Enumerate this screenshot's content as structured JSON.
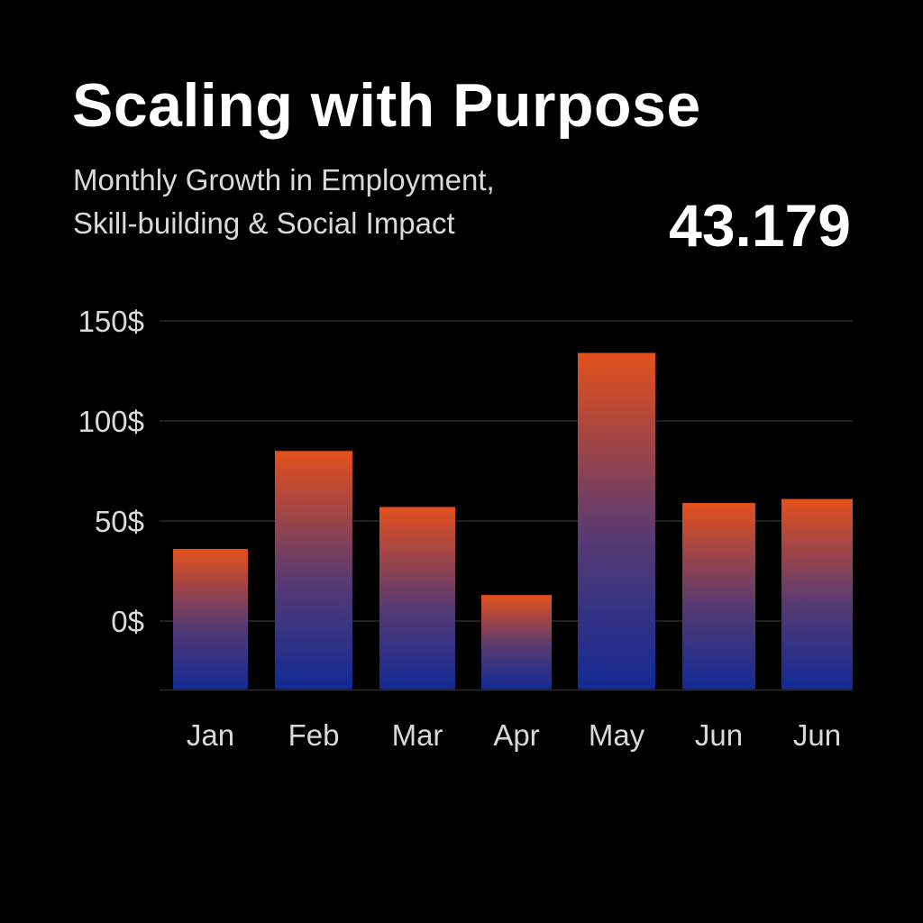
{
  "header": {
    "title": "Scaling with Purpose",
    "subtitle_line1": "Monthly Growth in Employment,",
    "subtitle_line2": "Skill-building & Social Impact",
    "kpi_value": "43.179"
  },
  "colors": {
    "background": "#000000",
    "bar_top": "#e4501c",
    "bar_bottom": "#122a94",
    "gridline": "#2a2a2a",
    "tick_text": "#d9d9d9"
  },
  "chart_data": {
    "type": "bar",
    "title": "Scaling with Purpose",
    "subtitle": "Monthly Growth in Employment, Skill-building & Social Impact",
    "categories": [
      "Jan",
      "Feb",
      "Mar",
      "Apr",
      "May",
      "Jun",
      "Jun"
    ],
    "values": [
      36,
      85,
      57,
      13,
      134,
      59,
      61
    ],
    "ylim": [
      -34,
      150
    ],
    "yticks": [
      0,
      50,
      100,
      150
    ],
    "ytick_labels": [
      "0$",
      "50$",
      "100$",
      "150$"
    ],
    "xlabel": "",
    "ylabel": "",
    "grid": true,
    "legend": "none"
  }
}
